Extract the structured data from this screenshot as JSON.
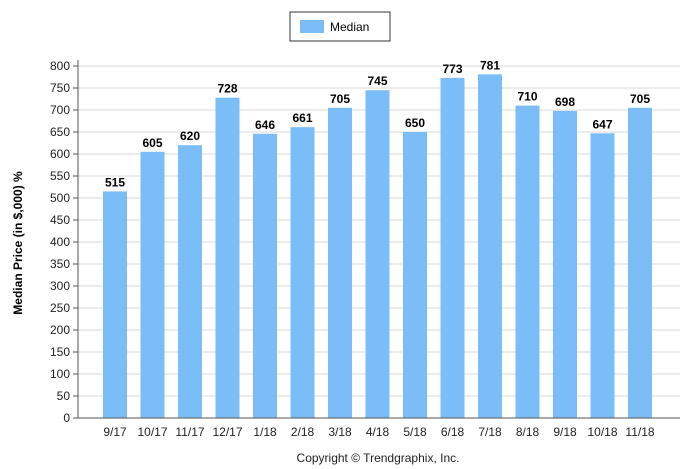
{
  "chart_data": {
    "type": "bar",
    "categories": [
      "9/17",
      "10/17",
      "11/17",
      "12/17",
      "1/18",
      "2/18",
      "3/18",
      "4/18",
      "5/18",
      "6/18",
      "7/18",
      "8/18",
      "9/18",
      "10/18",
      "11/18"
    ],
    "series": [
      {
        "name": "Median",
        "values": [
          515,
          605,
          620,
          728,
          646,
          661,
          705,
          745,
          650,
          773,
          781,
          710,
          698,
          647,
          705
        ]
      }
    ],
    "ylabel": "Median Price (in $,000) %",
    "xlabel": "",
    "ylim": [
      0,
      800
    ],
    "yticks": [
      0,
      50,
      100,
      150,
      200,
      250,
      300,
      350,
      400,
      450,
      500,
      550,
      600,
      650,
      700,
      750,
      800
    ],
    "grid": true,
    "legend_position": "top-center",
    "bar_color": "#7bbdf6",
    "grid_color": "#d9d9d9"
  },
  "footer": {
    "copyright": "Copyright © Trendgraphix, Inc."
  }
}
